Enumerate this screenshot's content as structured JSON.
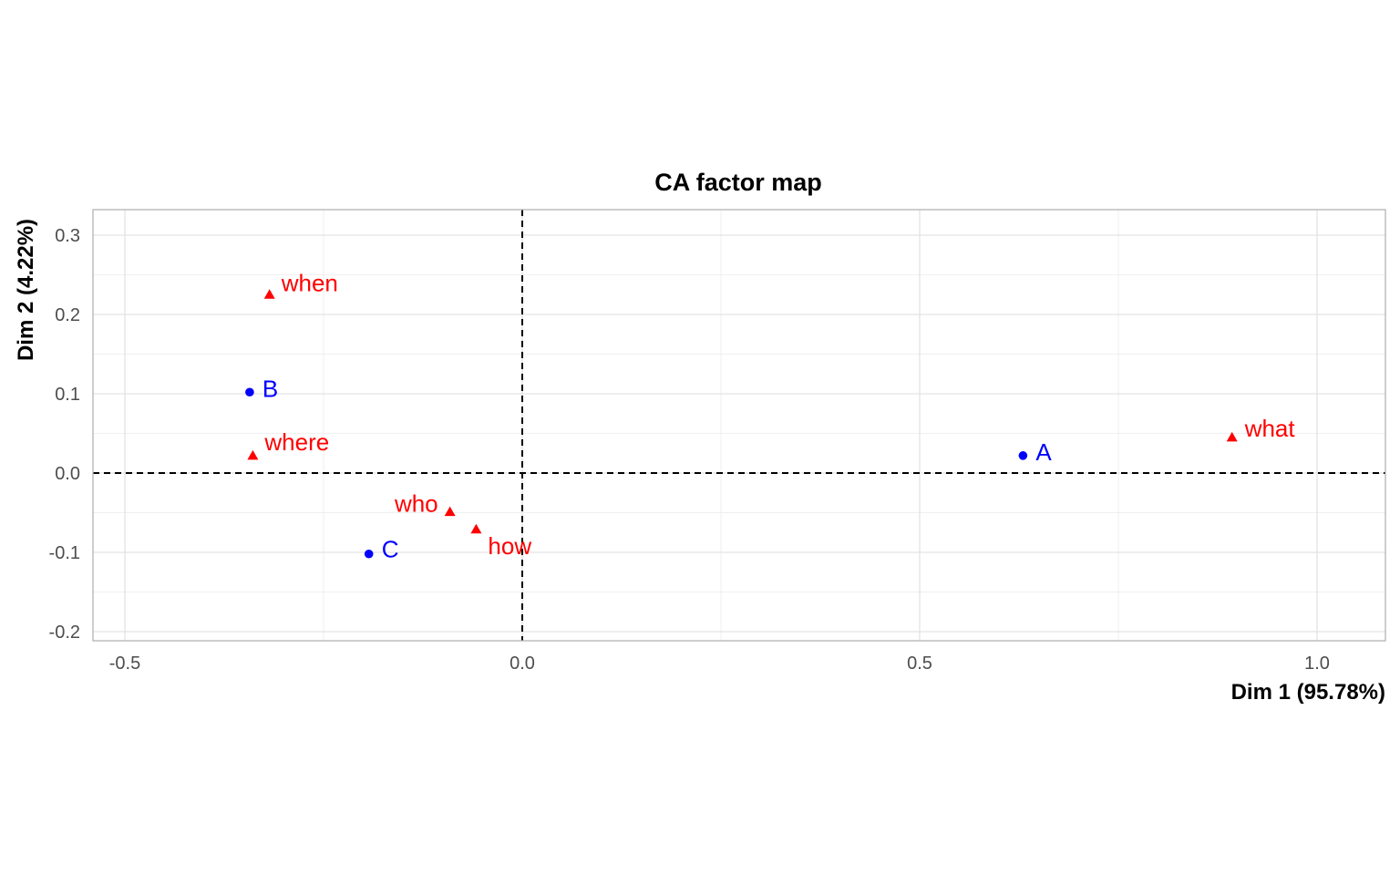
{
  "chart_data": {
    "type": "scatter",
    "title": "CA factor map",
    "xlabel": "Dim 1 (95.78%)",
    "ylabel": "Dim 2 (4.22%)",
    "xlim": [
      -0.54,
      1.09
    ],
    "ylim": [
      -0.21,
      0.33
    ],
    "xticks": [
      -0.5,
      0.0,
      0.5,
      1.0
    ],
    "xtick_labels": [
      "-0.5",
      "0.0",
      "0.5",
      "1.0"
    ],
    "yticks": [
      -0.2,
      -0.1,
      0.0,
      0.1,
      0.2,
      0.3
    ],
    "ytick_labels": [
      "-0.2",
      "-0.1",
      "0.0",
      "0.1",
      "0.2",
      "0.3"
    ],
    "grid": true,
    "reference_lines": {
      "x": 0.0,
      "y": 0.0,
      "style": "dashed"
    },
    "series": [
      {
        "marker": "circle",
        "color": "#0000ff",
        "points": [
          {
            "label": "A",
            "x": 0.63,
            "y": 0.022
          },
          {
            "label": "B",
            "x": -0.343,
            "y": 0.102
          },
          {
            "label": "C",
            "x": -0.193,
            "y": -0.102
          }
        ]
      },
      {
        "marker": "triangle",
        "color": "#ff0000",
        "points": [
          {
            "label": "what",
            "x": 0.893,
            "y": 0.045
          },
          {
            "label": "when",
            "x": -0.318,
            "y": 0.225
          },
          {
            "label": "where",
            "x": -0.339,
            "y": 0.022
          },
          {
            "label": "who",
            "x": -0.091,
            "y": -0.049
          },
          {
            "label": "how",
            "x": -0.058,
            "y": -0.071
          }
        ]
      }
    ]
  }
}
